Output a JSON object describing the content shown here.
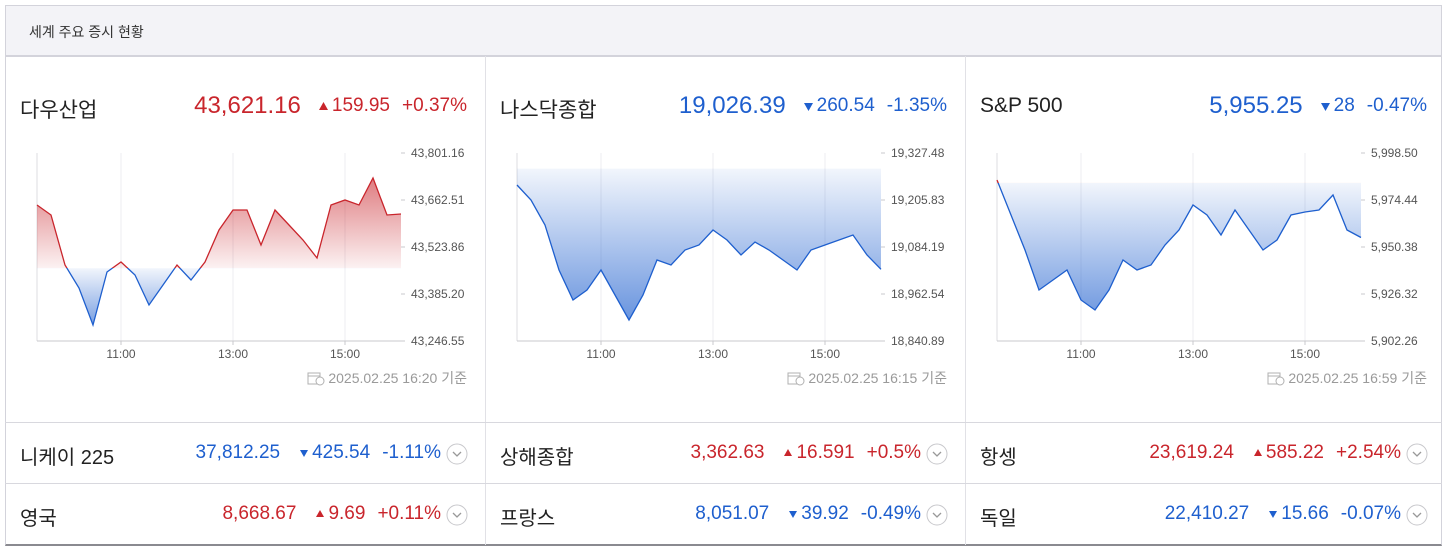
{
  "header": {
    "title": "세계 주요 증시 현황"
  },
  "cards": [
    {
      "name": "다우산업",
      "price": {
        "value": 43621.16,
        "label": "43,621.16"
      },
      "change": 159.95,
      "pct": {
        "value": 0.37,
        "label": "+0.37%"
      },
      "timestamp": "2025.02.25 16:20 기준",
      "chart": {
        "type": "line",
        "x": [
          9.5,
          9.75,
          10,
          10.25,
          10.5,
          10.75,
          11,
          11.25,
          11.5,
          11.75,
          12,
          12.25,
          12.5,
          12.75,
          13,
          13.25,
          13.5,
          13.75,
          14,
          14.25,
          14.5,
          14.75,
          15,
          15.25,
          15.5,
          15.75,
          16
        ],
        "values": [
          43647.8,
          43618.3,
          43470.8,
          43402.9,
          43293.8,
          43450.1,
          43479.6,
          43441.3,
          43352.8,
          43411.8,
          43470.8,
          43426.5,
          43479.6,
          43574.0,
          43633.0,
          43633.0,
          43529.8,
          43633.0,
          43588.8,
          43544.5,
          43491.4,
          43647.8,
          43662.5,
          43647.8,
          43727.4,
          43618.3,
          43621.2
        ],
        "xlim": [
          9.5,
          16
        ],
        "xticks": [
          {
            "value": 11,
            "label": "11:00"
          },
          {
            "value": 13,
            "label": "13:00"
          },
          {
            "value": 15,
            "label": "15:00"
          }
        ],
        "ylim": [
          43246.55,
          43801.16
        ],
        "yticks": [
          {
            "value": 43801.16,
            "label": "43,801.16"
          },
          {
            "value": 43662.51,
            "label": "43,662.51"
          },
          {
            "value": 43523.86,
            "label": "43,523.86"
          },
          {
            "value": 43385.2,
            "label": "43,385.20"
          },
          {
            "value": 43246.55,
            "label": "43,246.55"
          }
        ]
      }
    },
    {
      "name": "나스닥종합",
      "price": {
        "value": 19026.39,
        "label": "19,026.39"
      },
      "change": 260.54,
      "pct": {
        "value": -1.35,
        "label": "-1.35%"
      },
      "timestamp": "2025.02.25 16:15 기준",
      "chart": {
        "type": "line",
        "x": [
          9.5,
          9.75,
          10,
          10.25,
          10.5,
          10.75,
          11,
          11.25,
          11.5,
          11.75,
          12,
          12.25,
          12.5,
          12.75,
          13,
          13.25,
          13.5,
          13.75,
          14,
          14.25,
          14.5,
          14.75,
          15,
          15.25,
          15.5,
          15.75,
          16
        ],
        "values": [
          19244.7,
          19205.9,
          19141.2,
          19024.7,
          18947.1,
          18972.9,
          19024.7,
          18960.0,
          18895.3,
          18960.0,
          19050.6,
          19037.6,
          19076.5,
          19089.4,
          19128.2,
          19102.3,
          19063.5,
          19097.2,
          19076.5,
          19050.6,
          19024.7,
          19076.5,
          19089.4,
          19102.3,
          19115.3,
          19063.5,
          19026.4
        ],
        "xlim": [
          9.5,
          16
        ],
        "xticks": [
          {
            "value": 11,
            "label": "11:00"
          },
          {
            "value": 13,
            "label": "13:00"
          },
          {
            "value": 15,
            "label": "15:00"
          }
        ],
        "ylim": [
          18840.89,
          19327.48
        ],
        "yticks": [
          {
            "value": 19327.48,
            "label": "19,327.48"
          },
          {
            "value": 19205.83,
            "label": "19,205.83"
          },
          {
            "value": 19084.19,
            "label": "19,084.19"
          },
          {
            "value": 18962.54,
            "label": "18,962.54"
          },
          {
            "value": 18840.89,
            "label": "18,840.89"
          }
        ]
      }
    },
    {
      "name": "S&P 500",
      "price": {
        "value": 5955.25,
        "label": "5,955.25"
      },
      "change": 28,
      "pct": {
        "value": -0.47,
        "label": "-0.47%"
      },
      "timestamp": "2025.02.25 16:59 기준",
      "chart": {
        "type": "line",
        "x": [
          9.5,
          9.75,
          10,
          10.25,
          10.5,
          10.75,
          11,
          11.25,
          11.5,
          11.75,
          12,
          12.25,
          12.5,
          12.75,
          13,
          13.25,
          13.5,
          13.75,
          14,
          14.25,
          14.5,
          14.75,
          15,
          15.25,
          15.5,
          15.75,
          16
        ],
        "values": [
          5984.68,
          5966.76,
          5948.85,
          5928.37,
          5933.49,
          5938.61,
          5923.25,
          5918.13,
          5928.37,
          5943.73,
          5938.61,
          5941.17,
          5951.41,
          5959.08,
          5971.88,
          5966.76,
          5956.52,
          5969.32,
          5959.08,
          5948.85,
          5953.96,
          5966.76,
          5968.3,
          5969.32,
          5977.0,
          5959.08,
          5955.25
        ],
        "xlim": [
          9.5,
          16
        ],
        "xticks": [
          {
            "value": 11,
            "label": "11:00"
          },
          {
            "value": 13,
            "label": "13:00"
          },
          {
            "value": 15,
            "label": "15:00"
          }
        ],
        "ylim": [
          5902.26,
          5998.5
        ],
        "yticks": [
          {
            "value": 5998.5,
            "label": "5,998.50"
          },
          {
            "value": 5974.44,
            "label": "5,974.44"
          },
          {
            "value": 5950.38,
            "label": "5,950.38"
          },
          {
            "value": 5926.32,
            "label": "5,926.32"
          },
          {
            "value": 5902.26,
            "label": "5,902.26"
          }
        ]
      }
    }
  ],
  "markets": [
    {
      "name": "니케이 225",
      "price": "37,812.25",
      "change": 425.54,
      "pct": {
        "value": -1.11,
        "label": "-1.11%"
      }
    },
    {
      "name": "상해종합",
      "price": "3,362.63",
      "change": 16.591,
      "pct": {
        "value": 0.5,
        "label": "+0.5%"
      }
    },
    {
      "name": "항셍",
      "price": "23,619.24",
      "change": 585.22,
      "pct": {
        "value": 2.54,
        "label": "+2.54%"
      }
    },
    {
      "name": "영국",
      "price": "8,668.67",
      "change": 9.69,
      "pct": {
        "value": 0.11,
        "label": "+0.11%"
      }
    },
    {
      "name": "프랑스",
      "price": "8,051.07",
      "change": 39.92,
      "pct": {
        "value": -0.49,
        "label": "-0.49%"
      }
    },
    {
      "name": "독일",
      "price": "22,410.27",
      "change": 15.66,
      "pct": {
        "value": -0.07,
        "label": "-0.07%"
      }
    }
  ]
}
